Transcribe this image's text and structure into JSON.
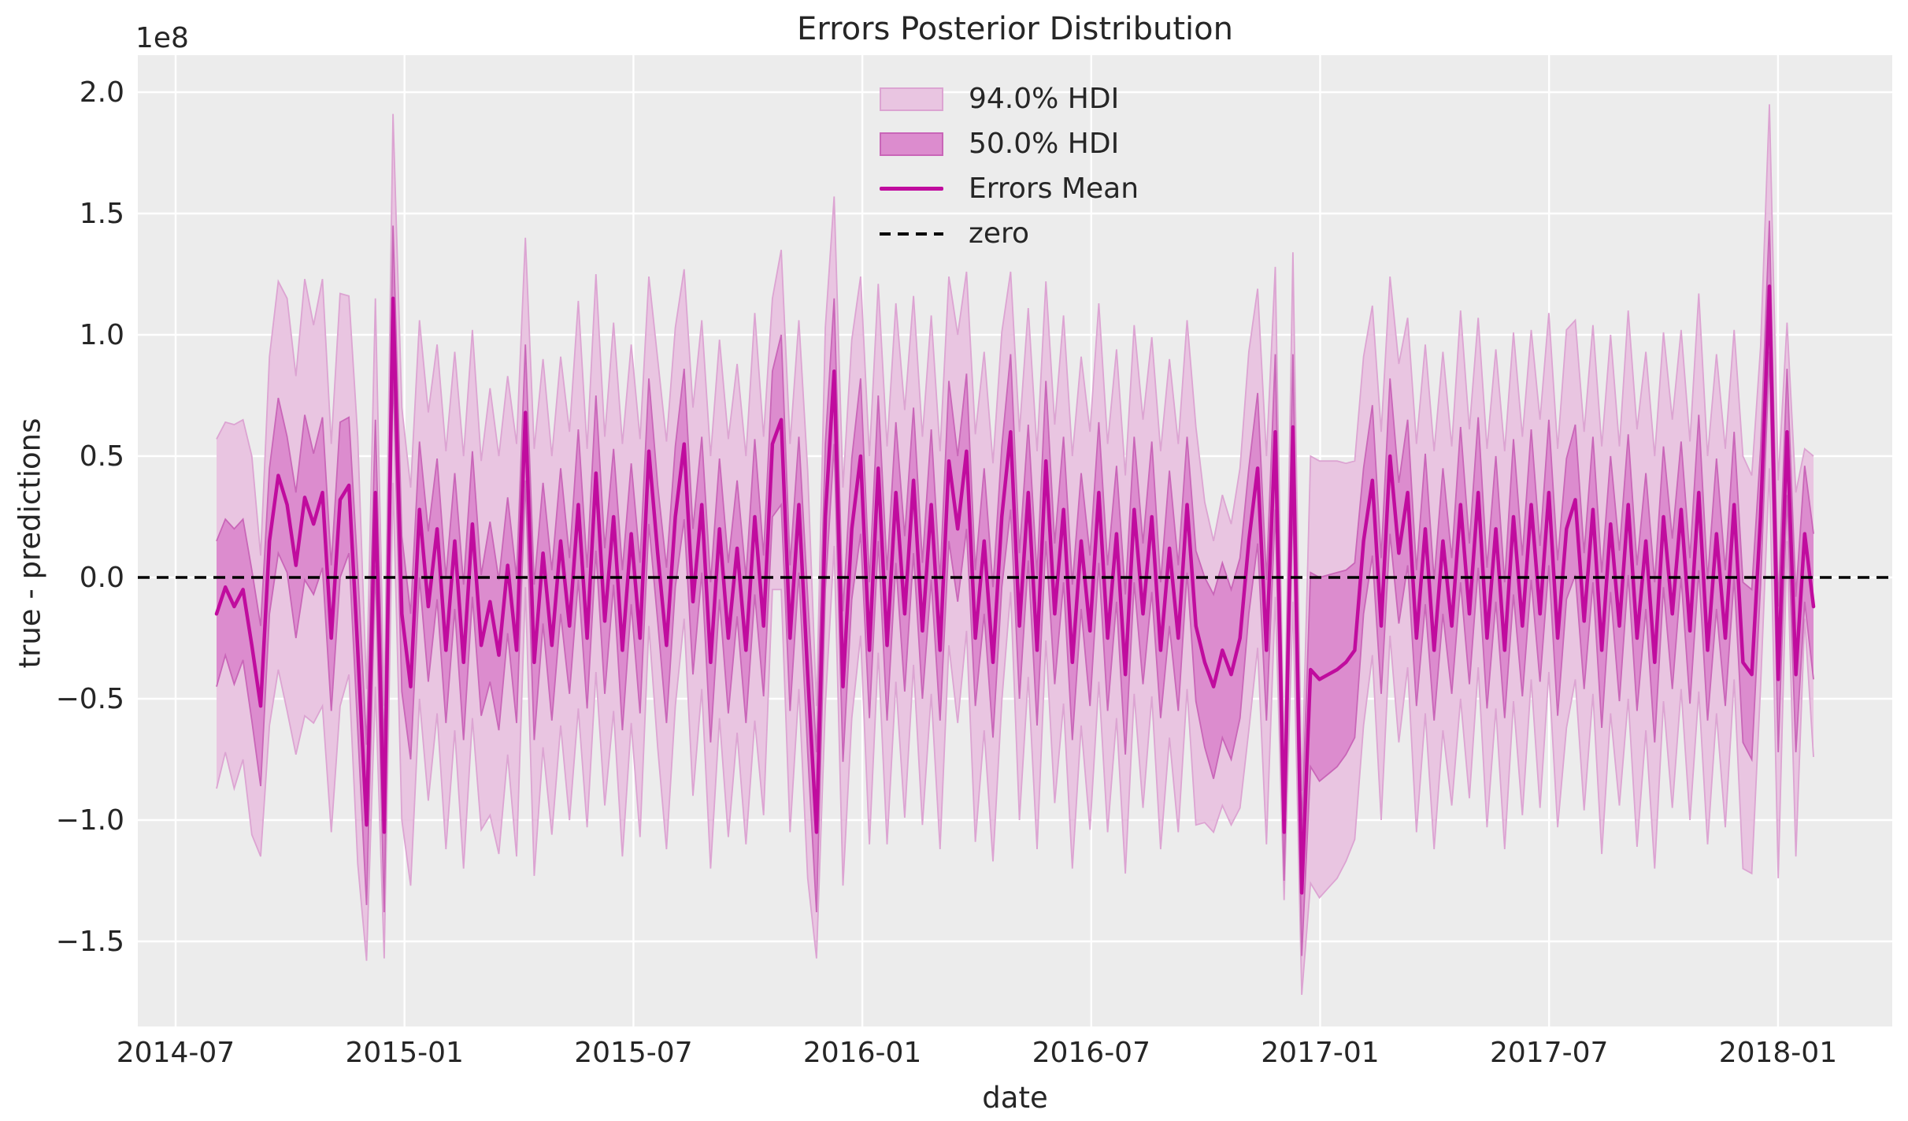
{
  "chart_data": {
    "type": "line",
    "title": "Errors Posterior Distribution",
    "xlabel": "date",
    "ylabel": "true - predictions",
    "offset_text": "1e8",
    "value_scale": 100000000,
    "x_start_date": "2014-08-03",
    "x_end_date": "2018-01-21",
    "x_freq_days": 7,
    "n_points": 182,
    "xtick_labels": [
      "2014-07",
      "2015-01",
      "2015-07",
      "2016-01",
      "2016-07",
      "2017-01",
      "2017-07",
      "2018-01"
    ],
    "ytick_labels": [
      "2.0",
      "1.5",
      "1.0",
      "0.5",
      "0.0",
      "−0.5",
      "−1.0",
      "−1.5"
    ],
    "ytick_values": [
      2.0,
      1.5,
      1.0,
      0.5,
      0.0,
      -0.5,
      -1.0,
      -1.5
    ],
    "ylim": [
      -1.85,
      2.15
    ],
    "grid": true,
    "legend_position": "upper center",
    "legend": [
      {
        "label": "94.0% HDI",
        "type": "patch",
        "fill": "#E9C5E1",
        "edge": "#DCA4D2"
      },
      {
        "label": "50.0% HDI",
        "type": "patch",
        "fill": "#DC8CCE",
        "edge": "#C966B8"
      },
      {
        "label": "Errors Mean",
        "type": "line",
        "color": "#C00C9E"
      },
      {
        "label": "zero",
        "type": "dashed-line",
        "color": "#000000"
      }
    ],
    "zero_line_value": 0.0,
    "colors": {
      "plot_bg": "#ECECEC",
      "grid": "#FFFFFF",
      "band94_fill": "#E9C5E1",
      "band94_edge": "#DCA4D2",
      "band50_fill": "#DC8CCE",
      "band50_edge": "#C966B8",
      "mean_line": "#C00C9E",
      "zero_line": "#000000",
      "text": "#262626"
    },
    "series_units": "1e8",
    "mean": [
      -0.15,
      -0.04,
      -0.12,
      -0.05,
      -0.28,
      -0.53,
      0.15,
      0.42,
      0.3,
      0.05,
      0.33,
      0.22,
      0.35,
      -0.25,
      0.32,
      0.38,
      -0.3,
      -1.02,
      0.35,
      -1.05,
      1.15,
      -0.15,
      -0.45,
      0.28,
      -0.12,
      0.2,
      -0.3,
      0.15,
      -0.35,
      0.22,
      -0.28,
      -0.1,
      -0.32,
      0.05,
      -0.3,
      0.68,
      -0.35,
      0.1,
      -0.28,
      0.15,
      -0.2,
      0.3,
      -0.25,
      0.43,
      -0.18,
      0.25,
      -0.3,
      0.18,
      -0.25,
      0.52,
      0.1,
      -0.28,
      0.25,
      0.55,
      -0.1,
      0.3,
      -0.35,
      0.2,
      -0.25,
      0.12,
      -0.3,
      0.25,
      -0.2,
      0.55,
      0.65,
      -0.25,
      0.3,
      -0.4,
      -1.05,
      0.25,
      0.85,
      -0.45,
      0.2,
      0.5,
      -0.3,
      0.45,
      -0.28,
      0.35,
      -0.15,
      0.4,
      -0.22,
      0.3,
      -0.3,
      0.48,
      0.2,
      0.52,
      -0.25,
      0.15,
      -0.35,
      0.25,
      0.6,
      -0.2,
      0.35,
      -0.3,
      0.48,
      -0.15,
      0.28,
      -0.35,
      0.15,
      -0.22,
      0.35,
      -0.25,
      0.18,
      -0.4,
      0.28,
      -0.15,
      0.25,
      -0.3,
      0.12,
      -0.25,
      0.3,
      -0.2,
      -0.35,
      -0.45,
      -0.3,
      -0.4,
      -0.25,
      0.15,
      0.45,
      -0.3,
      0.6,
      -1.05,
      0.62,
      -1.3,
      -0.38,
      -0.42,
      -0.4,
      -0.38,
      -0.35,
      -0.3,
      0.15,
      0.4,
      -0.2,
      0.5,
      0.1,
      0.35,
      -0.25,
      0.2,
      -0.3,
      0.15,
      -0.2,
      0.3,
      -0.15,
      0.35,
      -0.25,
      0.2,
      -0.3,
      0.25,
      -0.2,
      0.3,
      -0.15,
      0.35,
      -0.25,
      0.2,
      0.32,
      -0.18,
      0.28,
      -0.3,
      0.22,
      -0.2,
      0.3,
      -0.25,
      0.15,
      -0.35,
      0.25,
      -0.15,
      0.28,
      -0.22,
      0.35,
      -0.3,
      0.18,
      -0.25,
      0.3,
      -0.35,
      -0.4,
      0.25,
      1.2,
      -0.42,
      0.6,
      -0.4,
      0.18,
      -0.12
    ],
    "hdi50_halfwidth": [
      0.3,
      0.28,
      0.32,
      0.29,
      0.31,
      0.33,
      0.3,
      0.32,
      0.28,
      0.3,
      0.34,
      0.29,
      0.31,
      0.3,
      0.32,
      0.28,
      0.33,
      0.33,
      0.3,
      0.33,
      0.3,
      0.32,
      0.3,
      0.28,
      0.31,
      0.29,
      0.3,
      0.28,
      0.32,
      0.3,
      0.29,
      0.33,
      0.31,
      0.28,
      0.3,
      0.28,
      0.32,
      0.29,
      0.31,
      0.3,
      0.28,
      0.31,
      0.29,
      0.32,
      0.3,
      0.28,
      0.33,
      0.29,
      0.31,
      0.3,
      0.28,
      0.32,
      0.29,
      0.31,
      0.3,
      0.28,
      0.33,
      0.29,
      0.31,
      0.28,
      0.3,
      0.32,
      0.29,
      0.3,
      0.35,
      0.3,
      0.28,
      0.32,
      0.33,
      0.3,
      0.3,
      0.31,
      0.29,
      0.32,
      0.28,
      0.3,
      0.31,
      0.29,
      0.32,
      0.3,
      0.28,
      0.31,
      0.29,
      0.33,
      0.3,
      0.32,
      0.28,
      0.3,
      0.31,
      0.29,
      0.32,
      0.3,
      0.28,
      0.31,
      0.33,
      0.29,
      0.3,
      0.32,
      0.28,
      0.31,
      0.29,
      0.3,
      0.28,
      0.33,
      0.3,
      0.29,
      0.31,
      0.28,
      0.32,
      0.3,
      0.28,
      0.31,
      0.35,
      0.38,
      0.36,
      0.35,
      0.33,
      0.3,
      0.31,
      0.29,
      0.32,
      0.2,
      0.3,
      0.26,
      0.4,
      0.42,
      0.41,
      0.4,
      0.38,
      0.36,
      0.3,
      0.31,
      0.28,
      0.32,
      0.29,
      0.3,
      0.28,
      0.31,
      0.29,
      0.3,
      0.28,
      0.32,
      0.29,
      0.31,
      0.29,
      0.3,
      0.28,
      0.32,
      0.29,
      0.31,
      0.28,
      0.3,
      0.32,
      0.29,
      0.31,
      0.28,
      0.3,
      0.32,
      0.28,
      0.31,
      0.29,
      0.3,
      0.28,
      0.33,
      0.29,
      0.31,
      0.28,
      0.3,
      0.32,
      0.29,
      0.31,
      0.28,
      0.3,
      0.33,
      0.35,
      0.28,
      0.27,
      0.3,
      0.26,
      0.32,
      0.28,
      0.3
    ],
    "hdi94_halfwidth": [
      0.72,
      0.68,
      0.75,
      0.7,
      0.78,
      0.62,
      0.76,
      0.8,
      0.85,
      0.78,
      0.9,
      0.82,
      0.88,
      0.8,
      0.85,
      0.78,
      0.88,
      0.56,
      0.8,
      0.52,
      0.76,
      0.85,
      0.82,
      0.78,
      0.8,
      0.76,
      0.82,
      0.78,
      0.85,
      0.8,
      0.76,
      0.88,
      0.82,
      0.78,
      0.85,
      0.72,
      0.88,
      0.8,
      0.78,
      0.76,
      0.8,
      0.84,
      0.78,
      0.82,
      0.76,
      0.8,
      0.85,
      0.78,
      0.82,
      0.72,
      0.8,
      0.84,
      0.78,
      0.72,
      0.8,
      0.76,
      0.85,
      0.78,
      0.82,
      0.76,
      0.8,
      0.84,
      0.78,
      0.6,
      0.7,
      0.8,
      0.76,
      0.84,
      0.52,
      0.78,
      0.72,
      0.82,
      0.78,
      0.74,
      0.8,
      0.76,
      0.82,
      0.78,
      0.84,
      0.76,
      0.8,
      0.78,
      0.82,
      0.76,
      0.8,
      0.74,
      0.84,
      0.78,
      0.82,
      0.76,
      0.66,
      0.8,
      0.76,
      0.82,
      0.74,
      0.78,
      0.8,
      0.85,
      0.76,
      0.82,
      0.78,
      0.8,
      0.76,
      0.82,
      0.76,
      0.8,
      0.74,
      0.82,
      0.78,
      0.8,
      0.76,
      0.82,
      0.66,
      0.6,
      0.64,
      0.62,
      0.7,
      0.78,
      0.74,
      0.8,
      0.68,
      0.28,
      0.72,
      0.42,
      0.88,
      0.9,
      0.88,
      0.86,
      0.82,
      0.78,
      0.76,
      0.72,
      0.8,
      0.74,
      0.78,
      0.72,
      0.8,
      0.76,
      0.82,
      0.78,
      0.74,
      0.8,
      0.76,
      0.72,
      0.78,
      0.74,
      0.82,
      0.76,
      0.78,
      0.72,
      0.8,
      0.74,
      0.78,
      0.82,
      0.74,
      0.78,
      0.76,
      0.84,
      0.78,
      0.74,
      0.8,
      0.86,
      0.78,
      0.85,
      0.76,
      0.8,
      0.74,
      0.78,
      0.82,
      0.8,
      0.74,
      0.78,
      0.72,
      0.85,
      0.82,
      0.7,
      0.75,
      0.82,
      0.45,
      0.75,
      0.35,
      0.62
    ]
  }
}
